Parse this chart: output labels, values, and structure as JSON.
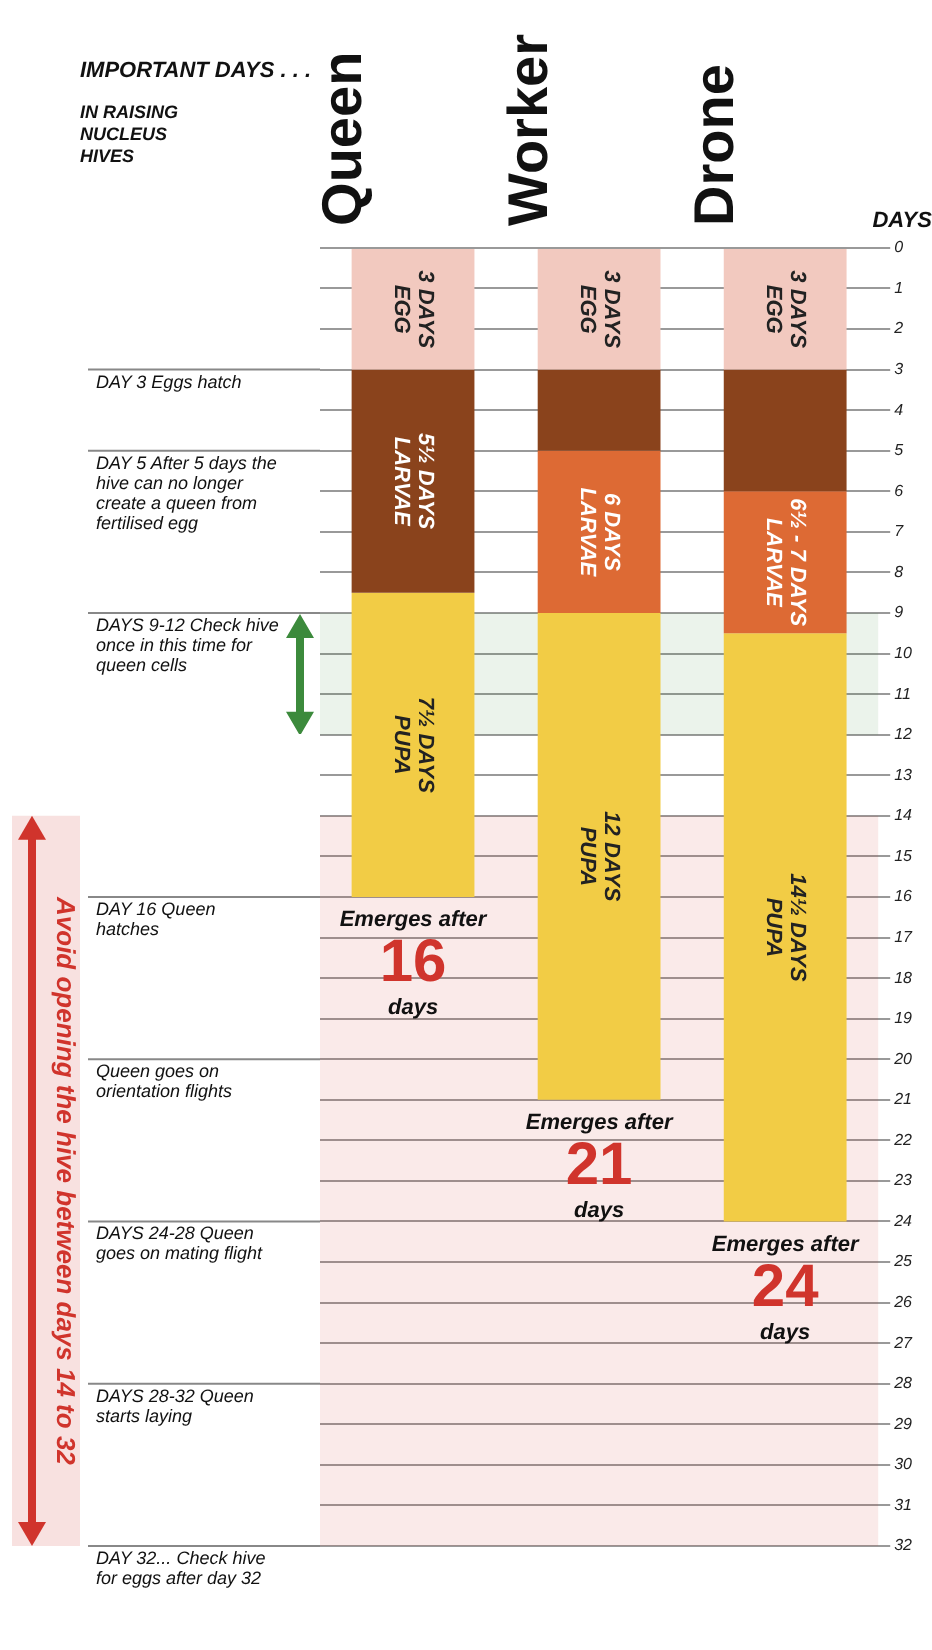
{
  "chart_data": {
    "type": "bar",
    "stacked": true,
    "legend": false,
    "grid": "y",
    "ylabel": "DAYS",
    "categories": [
      "Queen",
      "Worker",
      "Drone"
    ],
    "ylim": [
      32,
      0
    ],
    "yticks": [
      0,
      1,
      2,
      3,
      4,
      5,
      6,
      7,
      8,
      9,
      10,
      11,
      12,
      13,
      14,
      15,
      16,
      17,
      18,
      19,
      20,
      21,
      22,
      23,
      24,
      25,
      26,
      27,
      28,
      29,
      30,
      31,
      32
    ],
    "series": [
      {
        "color": "#f2c9bf",
        "values": [
          3,
          3,
          3
        ],
        "value_labels": [
          "EGG 3 DAYS",
          "EGG 3 DAYS",
          "EGG 3 DAYS"
        ]
      },
      {
        "color": "#8a431c",
        "values": [
          5.5,
          2,
          3
        ],
        "value_labels": [
          "LARVAE 5½ DAYS",
          null,
          null
        ]
      },
      {
        "color": "#dd6a34",
        "values": [
          null,
          4,
          3.5
        ],
        "value_labels": [
          null,
          "LARVAE 6 DAYS",
          "LARVAE 6½ - 7 DAYS"
        ]
      },
      {
        "color": "#f2cc45",
        "values": [
          7.5,
          12,
          14.5
        ],
        "value_labels": [
          "PUPA 7½ DAYS",
          "PUPA 12 DAYS",
          "PUPA 14½ DAYS"
        ]
      }
    ],
    "ref_lines": [
      {
        "axis": "y",
        "value": 3,
        "label": "DAY 3 Eggs hatch"
      },
      {
        "axis": "y",
        "value": 5,
        "label": "DAY 5 After 5 days the hive can no longer create a queen from fertilised egg"
      },
      {
        "axis": "y",
        "value": 9,
        "label": "DAYS 9-12 Check hive once in this time for queen cells"
      },
      {
        "axis": "y",
        "value": 16,
        "label": "DAY 16 Queen hatches"
      },
      {
        "axis": "y",
        "value": 20,
        "label": "Queen goes on orientation flights"
      },
      {
        "axis": "y",
        "value": 24,
        "label": "DAYS 24-28 Queen goes on mating flight"
      },
      {
        "axis": "y",
        "value": 28,
        "label": "DAYS 28-32 Queen starts laying"
      },
      {
        "axis": "y",
        "value": 32,
        "label": "DAY 32... Check hive for eggs after day 32"
      }
    ],
    "bands": [
      {
        "axis": "y",
        "from": 14,
        "to": 32,
        "label": "Avoid opening the hive between days 14 to 32",
        "color": "#d0342c"
      },
      {
        "axis": "y",
        "from": 9,
        "to": 12,
        "color": "#3c8a3c"
      }
    ],
    "annotations": [
      "IMPORTANT DAYS . . .",
      "IN RAISING NUCLEUS HIVES",
      {
        "text": "Emerges after 16 days",
        "x": "Queen",
        "y": 16
      },
      {
        "text": "Emerges after 21 days",
        "x": "Worker",
        "y": 21
      },
      {
        "text": "Emerges after 24 days",
        "x": "Drone",
        "y": 24
      }
    ]
  }
}
